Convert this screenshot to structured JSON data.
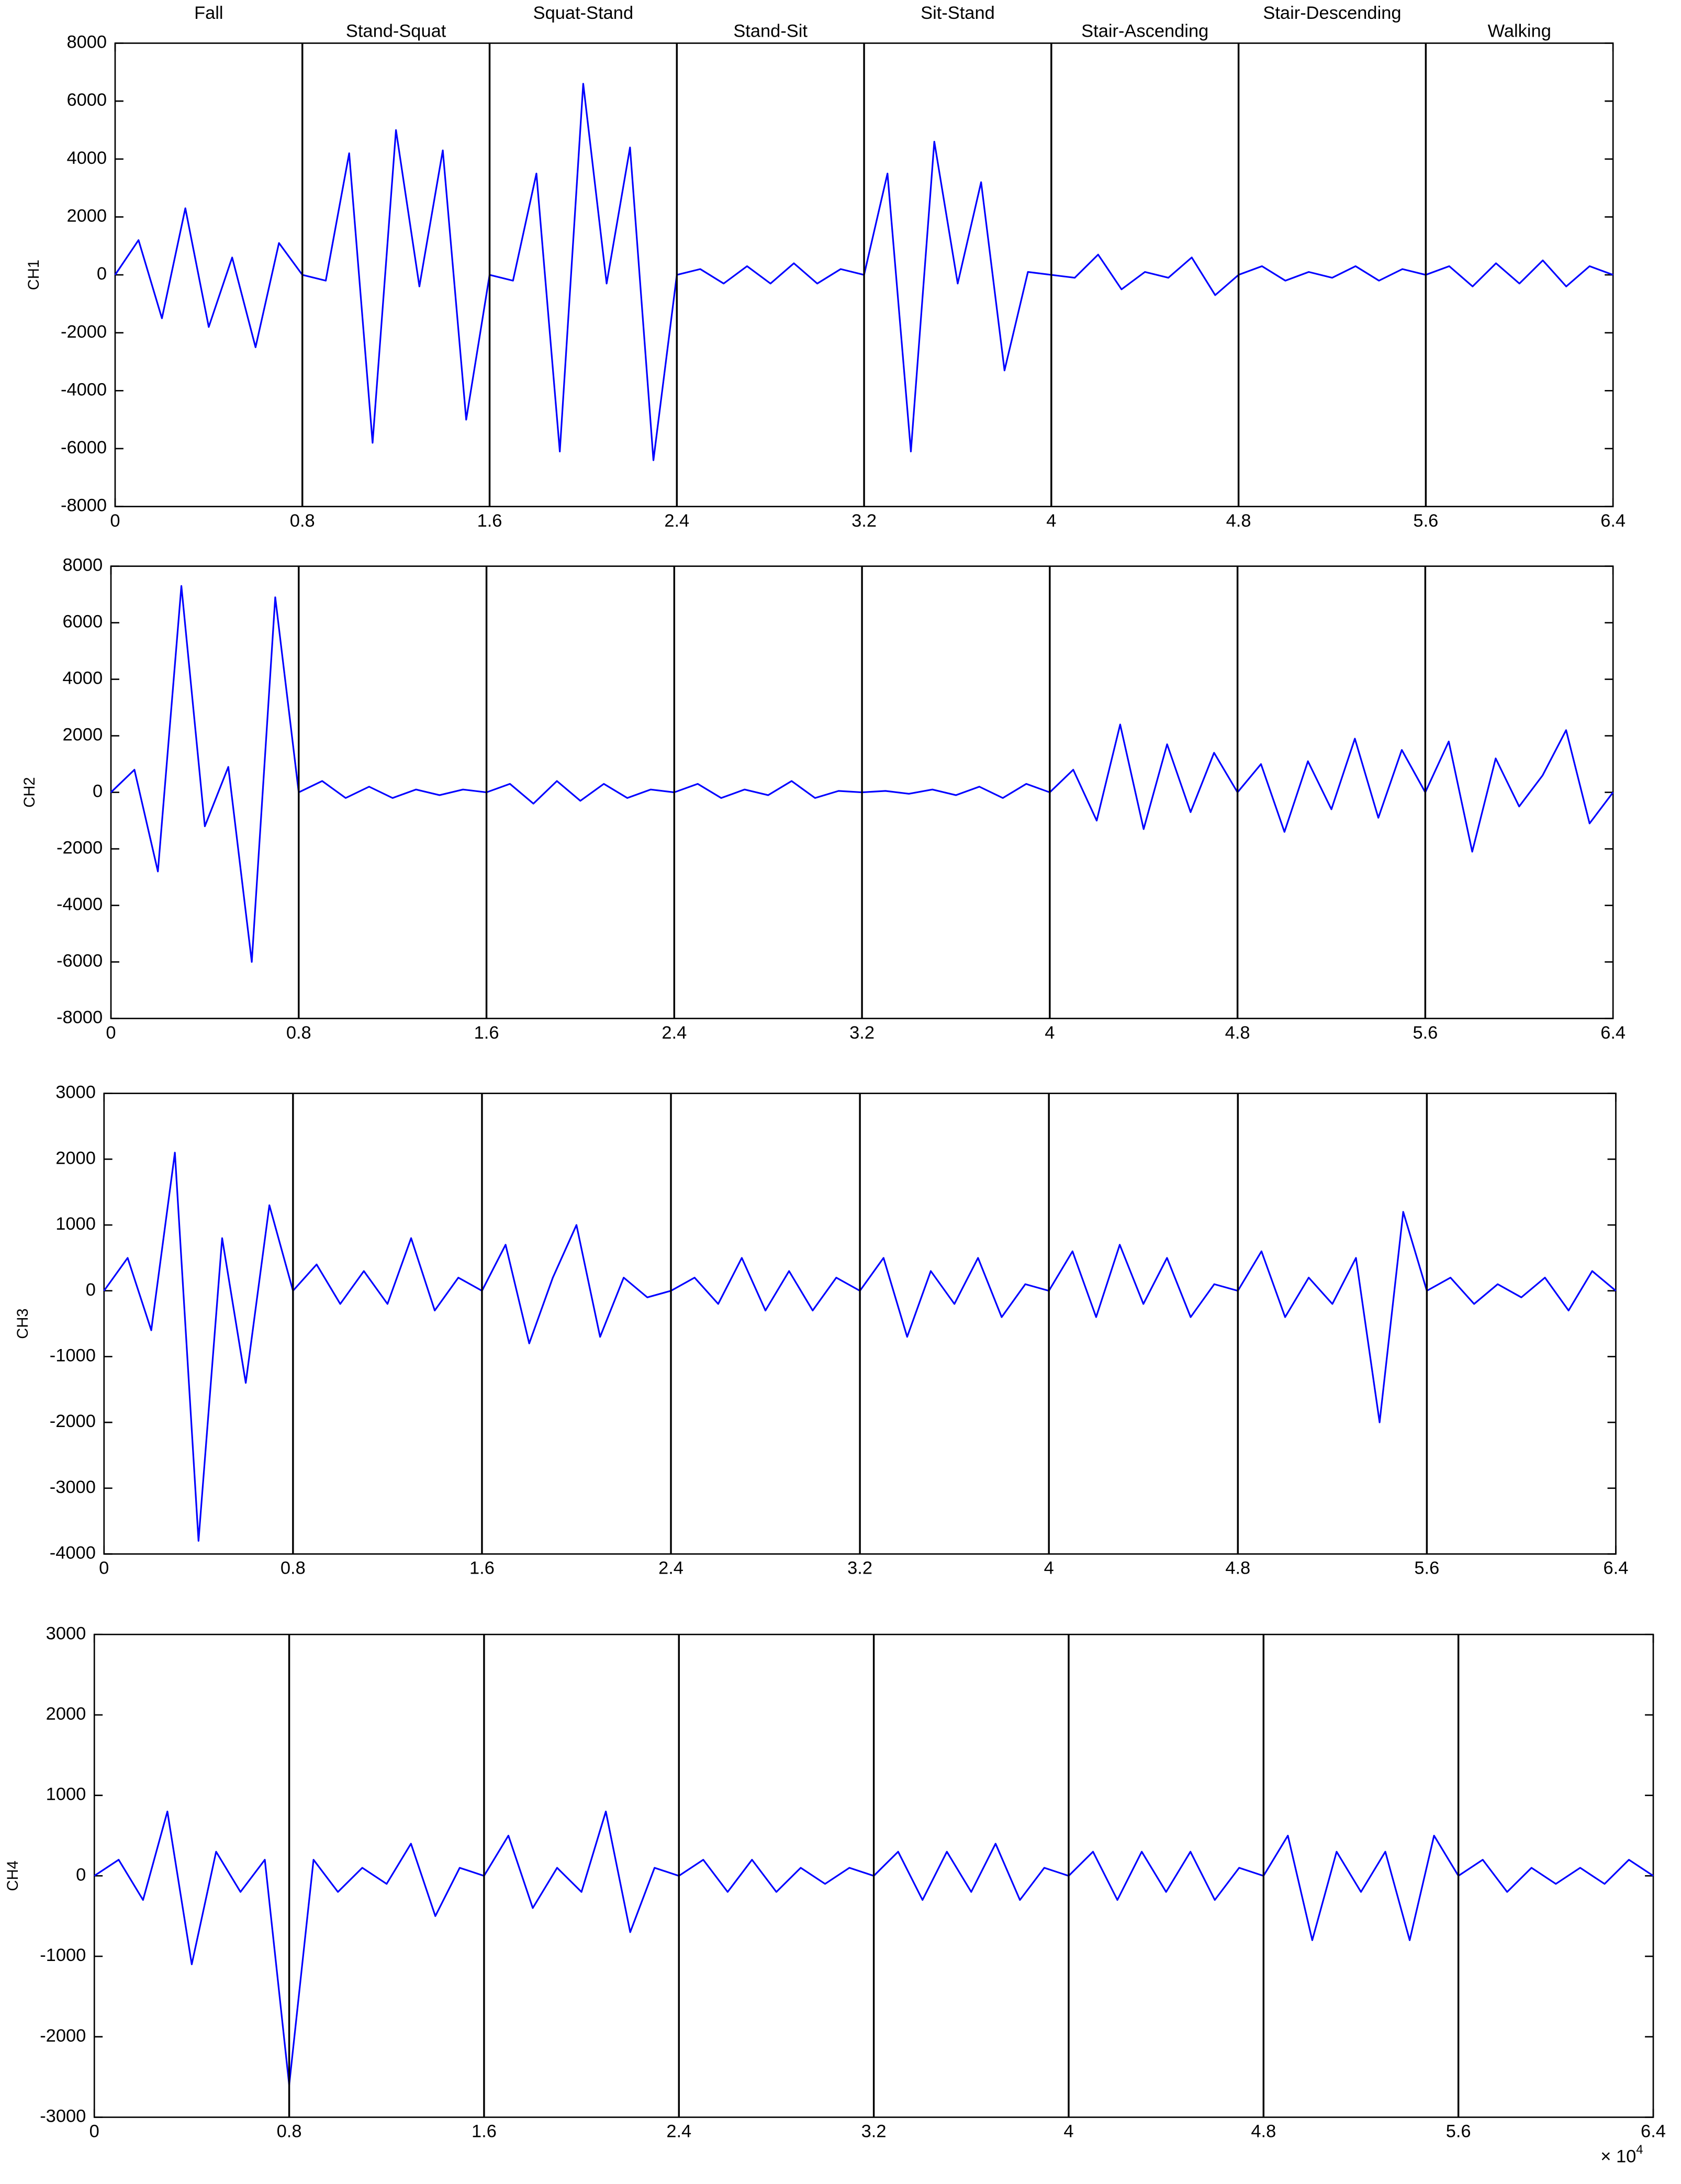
{
  "chart_data": [
    {
      "type": "line",
      "ylabel": "CH1",
      "activities": [
        "Fall",
        "Stand-Squat",
        "Squat-Stand",
        "Stand-Sit",
        "Sit-Stand",
        "Stair-Ascending",
        "Stair-Descending",
        "Walking"
      ],
      "dividers": [
        0.8,
        1.6,
        2.4,
        3.2,
        4,
        4.8,
        5.6
      ],
      "x": [
        0,
        0.1,
        0.2,
        0.3,
        0.4,
        0.5,
        0.6,
        0.7,
        0.8,
        0.9,
        1,
        1.1,
        1.2,
        1.3,
        1.4,
        1.5,
        1.6,
        1.7,
        1.8,
        1.9,
        2,
        2.1,
        2.2,
        2.3,
        2.4,
        2.5,
        2.6,
        2.7,
        2.8,
        2.9,
        3,
        3.1,
        3.2,
        3.3,
        3.4,
        3.5,
        3.6,
        3.7,
        3.8,
        3.9,
        4,
        4.1,
        4.2,
        4.3,
        4.4,
        4.5,
        4.6,
        4.7,
        4.8,
        4.9,
        5,
        5.1,
        5.2,
        5.3,
        5.4,
        5.5,
        5.6,
        5.7,
        5.8,
        5.9,
        6,
        6.1,
        6.2,
        6.3,
        6.4
      ],
      "series": [
        {
          "color": "#0000ff",
          "values": [
            0,
            1200,
            -1500,
            2300,
            -1800,
            600,
            -2500,
            1100,
            0,
            -200,
            4200,
            -5800,
            5000,
            -400,
            4300,
            -5000,
            0,
            -200,
            3500,
            -6100,
            6600,
            -300,
            4400,
            -6400,
            0,
            200,
            -300,
            300,
            -300,
            400,
            -300,
            200,
            0,
            3500,
            -6100,
            4600,
            -300,
            3200,
            -3300,
            100,
            0,
            -100,
            700,
            -500,
            100,
            -100,
            600,
            -700,
            0,
            300,
            -200,
            100,
            -100,
            300,
            -200,
            200,
            0,
            300,
            -400,
            400,
            -300,
            500,
            -400,
            300,
            0
          ]
        }
      ],
      "xlim": [
        0,
        6.4
      ],
      "xticks": [
        0,
        0.8,
        1.6,
        2.4,
        3.2,
        4,
        4.8,
        5.6,
        6.4
      ],
      "ylim": [
        -8000,
        8000
      ],
      "yticks": [
        -8000,
        -6000,
        -4000,
        -2000,
        0,
        2000,
        4000,
        6000,
        8000
      ]
    },
    {
      "type": "line",
      "ylabel": "CH2",
      "dividers": [
        0.8,
        1.6,
        2.4,
        3.2,
        4,
        4.8,
        5.6
      ],
      "x": [
        0,
        0.1,
        0.2,
        0.3,
        0.4,
        0.5,
        0.6,
        0.7,
        0.8,
        0.9,
        1,
        1.1,
        1.2,
        1.3,
        1.4,
        1.5,
        1.6,
        1.7,
        1.8,
        1.9,
        2,
        2.1,
        2.2,
        2.3,
        2.4,
        2.5,
        2.6,
        2.7,
        2.8,
        2.9,
        3,
        3.1,
        3.2,
        3.3,
        3.4,
        3.5,
        3.6,
        3.7,
        3.8,
        3.9,
        4,
        4.1,
        4.2,
        4.3,
        4.4,
        4.5,
        4.6,
        4.7,
        4.8,
        4.9,
        5,
        5.1,
        5.2,
        5.3,
        5.4,
        5.5,
        5.6,
        5.7,
        5.8,
        5.9,
        6,
        6.1,
        6.2,
        6.3,
        6.4
      ],
      "series": [
        {
          "color": "#0000ff",
          "values": [
            0,
            800,
            -2800,
            7300,
            -1200,
            900,
            -6000,
            6900,
            0,
            400,
            -200,
            200,
            -200,
            100,
            -100,
            100,
            0,
            300,
            -400,
            400,
            -300,
            300,
            -200,
            100,
            0,
            300,
            -200,
            100,
            -100,
            400,
            -200,
            50,
            0,
            50,
            -50,
            100,
            -100,
            200,
            -200,
            300,
            0,
            800,
            -1000,
            2400,
            -1300,
            1700,
            -700,
            1400,
            0,
            1000,
            -1400,
            1100,
            -600,
            1900,
            -900,
            1500,
            0,
            1800,
            -2100,
            1200,
            -500,
            600,
            2200,
            -1100,
            0
          ]
        }
      ],
      "xlim": [
        0,
        6.4
      ],
      "xticks": [
        0,
        0.8,
        1.6,
        2.4,
        3.2,
        4,
        4.8,
        5.6,
        6.4
      ],
      "ylim": [
        -8000,
        8000
      ],
      "yticks": [
        -8000,
        -6000,
        -4000,
        -2000,
        0,
        2000,
        4000,
        6000,
        8000
      ]
    },
    {
      "type": "line",
      "ylabel": "CH3",
      "dividers": [
        0.8,
        1.6,
        2.4,
        3.2,
        4,
        4.8,
        5.6
      ],
      "x": [
        0,
        0.1,
        0.2,
        0.3,
        0.4,
        0.5,
        0.6,
        0.7,
        0.8,
        0.9,
        1,
        1.1,
        1.2,
        1.3,
        1.4,
        1.5,
        1.6,
        1.7,
        1.8,
        1.9,
        2,
        2.1,
        2.2,
        2.3,
        2.4,
        2.5,
        2.6,
        2.7,
        2.8,
        2.9,
        3,
        3.1,
        3.2,
        3.3,
        3.4,
        3.5,
        3.6,
        3.7,
        3.8,
        3.9,
        4,
        4.1,
        4.2,
        4.3,
        4.4,
        4.5,
        4.6,
        4.7,
        4.8,
        4.9,
        5,
        5.1,
        5.2,
        5.3,
        5.4,
        5.5,
        5.6,
        5.7,
        5.8,
        5.9,
        6,
        6.1,
        6.2,
        6.3,
        6.4
      ],
      "series": [
        {
          "color": "#0000ff",
          "values": [
            0,
            500,
            -600,
            2100,
            -3800,
            800,
            -1400,
            1300,
            0,
            400,
            -200,
            300,
            -200,
            800,
            -300,
            200,
            0,
            700,
            -800,
            200,
            1000,
            -700,
            200,
            -100,
            0,
            200,
            -200,
            500,
            -300,
            300,
            -300,
            200,
            0,
            500,
            -700,
            300,
            -200,
            500,
            -400,
            100,
            0,
            600,
            -400,
            700,
            -200,
            500,
            -400,
            100,
            0,
            600,
            -400,
            200,
            -200,
            500,
            -2000,
            1200,
            0,
            200,
            -200,
            100,
            -100,
            200,
            -300,
            300,
            0
          ]
        }
      ],
      "xlim": [
        0,
        6.4
      ],
      "xticks": [
        0,
        0.8,
        1.6,
        2.4,
        3.2,
        4,
        4.8,
        5.6,
        6.4
      ],
      "ylim": [
        -4000,
        3000
      ],
      "yticks": [
        -4000,
        -3000,
        -2000,
        -1000,
        0,
        1000,
        2000,
        3000
      ]
    },
    {
      "type": "line",
      "ylabel": "CH4",
      "dividers": [
        0.8,
        1.6,
        2.4,
        3.2,
        4,
        4.8,
        5.6
      ],
      "x": [
        0,
        0.1,
        0.2,
        0.3,
        0.4,
        0.5,
        0.6,
        0.7,
        0.8,
        0.9,
        1,
        1.1,
        1.2,
        1.3,
        1.4,
        1.5,
        1.6,
        1.7,
        1.8,
        1.9,
        2,
        2.1,
        2.2,
        2.3,
        2.4,
        2.5,
        2.6,
        2.7,
        2.8,
        2.9,
        3,
        3.1,
        3.2,
        3.3,
        3.4,
        3.5,
        3.6,
        3.7,
        3.8,
        3.9,
        4,
        4.1,
        4.2,
        4.3,
        4.4,
        4.5,
        4.6,
        4.7,
        4.8,
        4.9,
        5,
        5.1,
        5.2,
        5.3,
        5.4,
        5.5,
        5.6,
        5.7,
        5.8,
        5.9,
        6,
        6.1,
        6.2,
        6.3,
        6.4
      ],
      "series": [
        {
          "color": "#0000ff",
          "values": [
            0,
            200,
            -300,
            800,
            -1100,
            300,
            -200,
            200,
            -2600,
            200,
            -200,
            100,
            -100,
            400,
            -500,
            100,
            0,
            500,
            -400,
            100,
            -200,
            800,
            -700,
            100,
            0,
            200,
            -200,
            200,
            -200,
            100,
            -100,
            100,
            0,
            300,
            -300,
            300,
            -200,
            400,
            -300,
            100,
            0,
            300,
            -300,
            300,
            -200,
            300,
            -300,
            100,
            0,
            500,
            -800,
            300,
            -200,
            300,
            -800,
            500,
            0,
            200,
            -200,
            100,
            -100,
            100,
            -100,
            200,
            0
          ]
        }
      ],
      "xlim": [
        0,
        6.4
      ],
      "xticks": [
        0,
        0.8,
        1.6,
        2.4,
        3.2,
        4,
        4.8,
        5.6,
        6.4
      ],
      "ylim": [
        -3000,
        3000
      ],
      "yticks": [
        -3000,
        -2000,
        -1000,
        0,
        1000,
        2000,
        3000
      ],
      "x_multiplier": "× 10",
      "x_multiplier_exponent": "4"
    }
  ]
}
